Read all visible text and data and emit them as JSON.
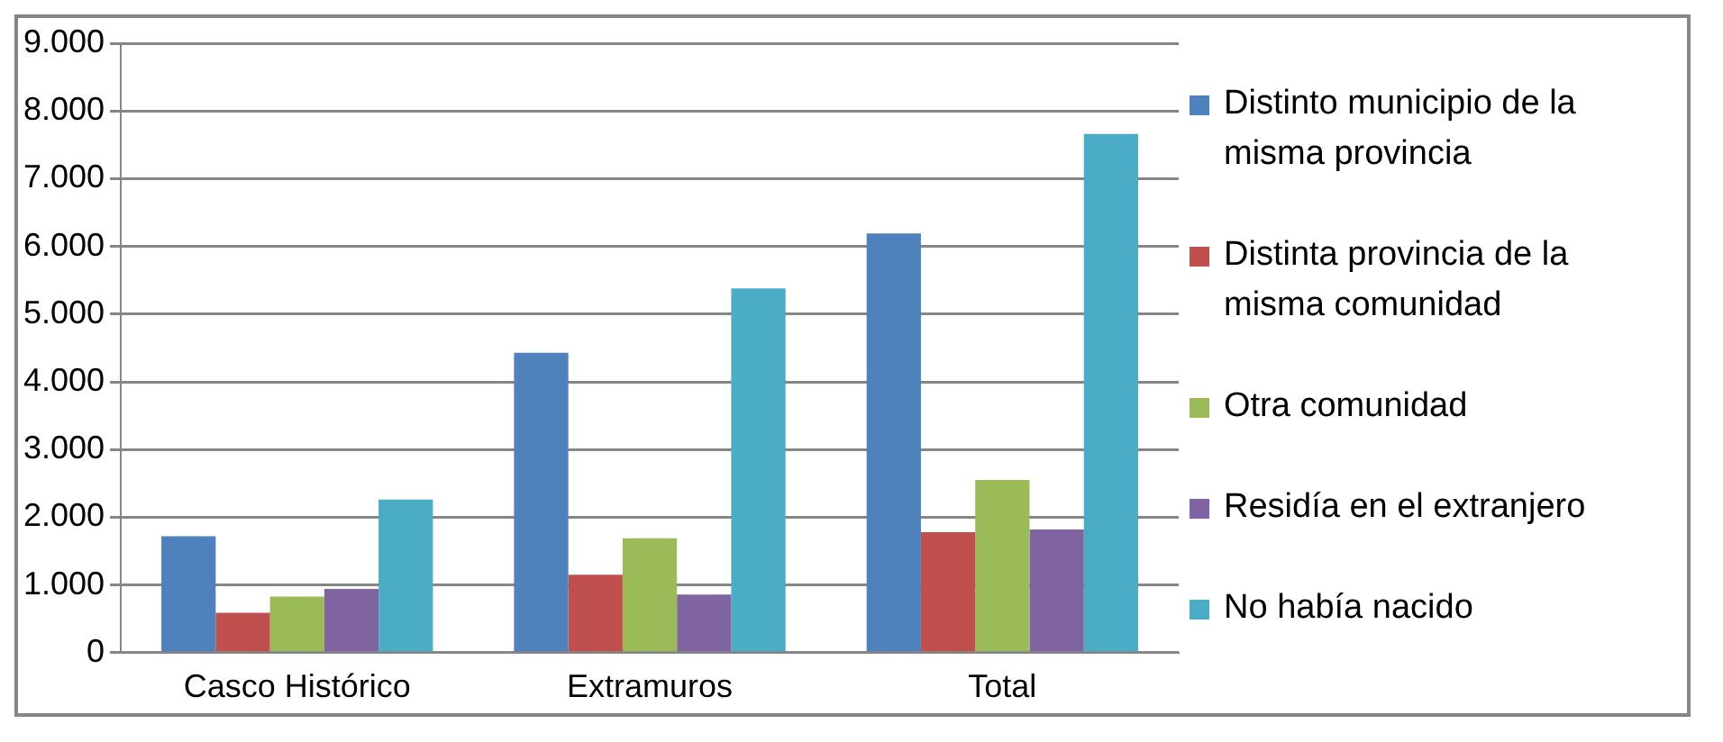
{
  "chart_data": {
    "type": "bar",
    "categories": [
      "Casco Histórico",
      "Extramuros",
      "Total"
    ],
    "series": [
      {
        "name": "Distinto municipio de la misma provincia",
        "color": "#4f81bd",
        "values": [
          1720,
          4430,
          6190
        ]
      },
      {
        "name": "Distinta provincia de la misma comunidad",
        "color": "#c0504d",
        "values": [
          590,
          1150,
          1780
        ]
      },
      {
        "name": "Otra comunidad",
        "color": "#9bbb59",
        "values": [
          830,
          1690,
          2550
        ]
      },
      {
        "name": "Residía en el extranjero",
        "color": "#8064a2",
        "values": [
          940,
          860,
          1820
        ]
      },
      {
        "name": "No había nacido",
        "color": "#4bacc6",
        "values": [
          2260,
          5380,
          7660
        ]
      }
    ],
    "ylim": [
      0,
      9000
    ],
    "yticks": [
      {
        "value": 0,
        "label": "0"
      },
      {
        "value": 1000,
        "label": "1.000"
      },
      {
        "value": 2000,
        "label": "2.000"
      },
      {
        "value": 3000,
        "label": "3.000"
      },
      {
        "value": 4000,
        "label": "4.000"
      },
      {
        "value": 5000,
        "label": "5.000"
      },
      {
        "value": 6000,
        "label": "6.000"
      },
      {
        "value": 7000,
        "label": "7.000"
      },
      {
        "value": 8000,
        "label": "8.000"
      },
      {
        "value": 9000,
        "label": "9.000"
      }
    ],
    "grid": "y",
    "legend": "right"
  }
}
